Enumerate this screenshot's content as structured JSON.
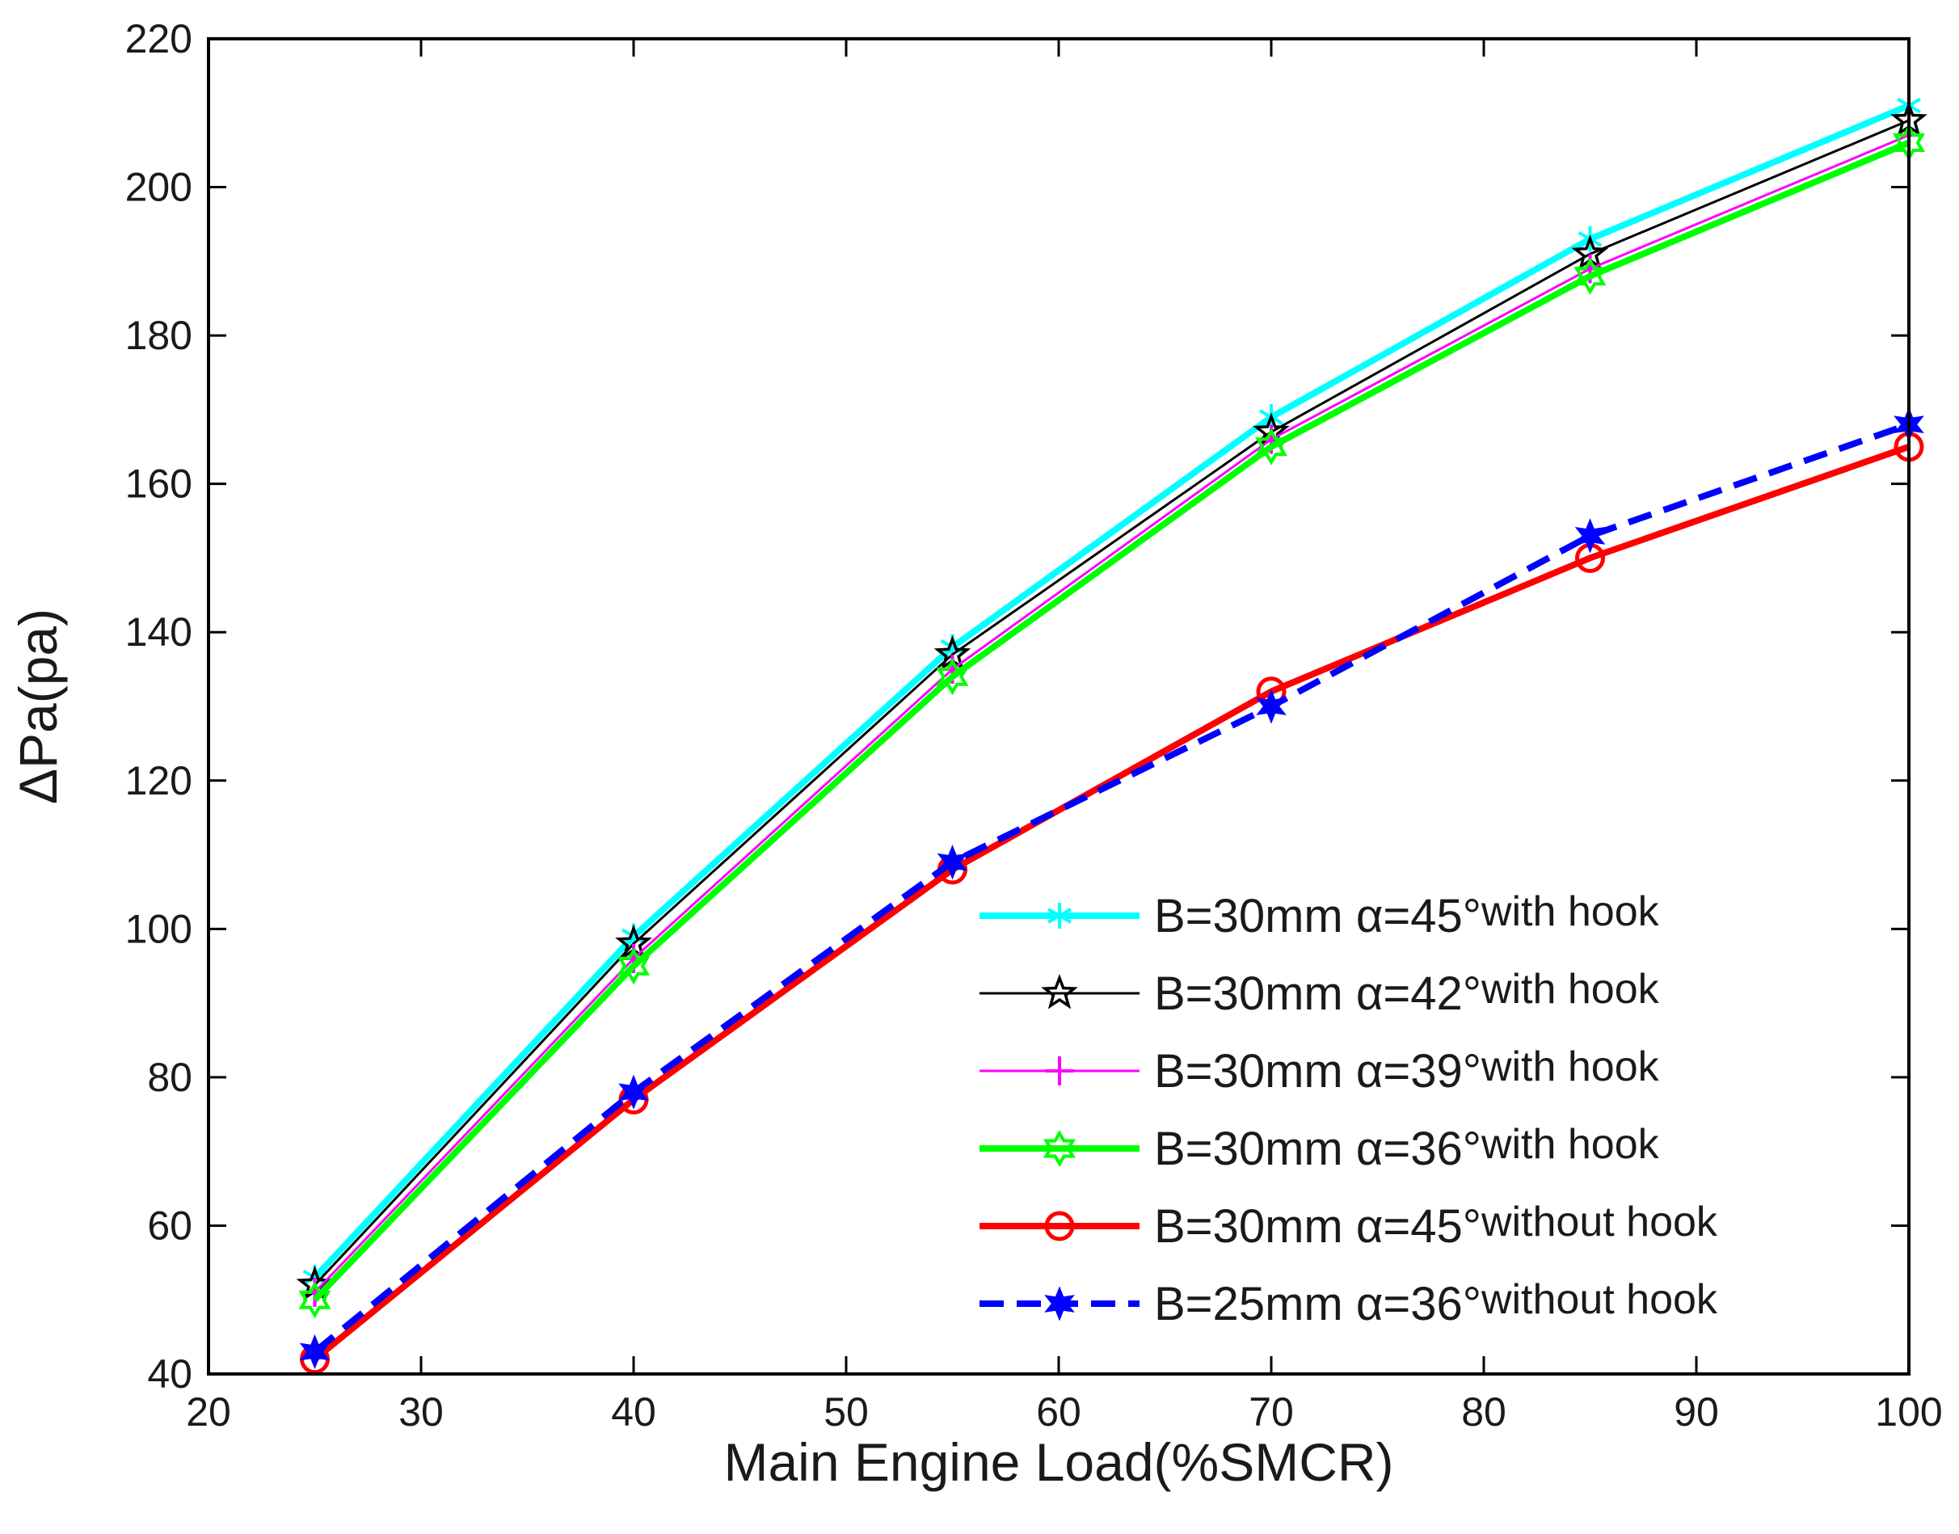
{
  "chart_data": {
    "type": "line",
    "title": "",
    "xlabel": "Main Engine Load(%SMCR)",
    "ylabel": "ΔPa(pa)",
    "xlim": [
      20,
      100
    ],
    "ylim": [
      40,
      220
    ],
    "xticks": [
      20,
      30,
      40,
      50,
      60,
      70,
      80,
      90,
      100
    ],
    "yticks": [
      40,
      60,
      80,
      100,
      120,
      140,
      160,
      180,
      200,
      220
    ],
    "grid": false,
    "legend_position": "bottom-right",
    "x": [
      25,
      40,
      55,
      70,
      85,
      100
    ],
    "series": [
      {
        "name": "B=30mm α=45°with hook",
        "label_main": "B=30mm α=45°",
        "label_suffix": "with hook",
        "values": [
          53,
          99,
          138,
          169,
          193,
          211
        ],
        "color": "#00ffff",
        "marker": "asterisk",
        "dash": "solid",
        "width": "thick"
      },
      {
        "name": "B=30mm α=42°with hook",
        "label_main": "B=30mm α=42°",
        "label_suffix": "with hook",
        "values": [
          52,
          98,
          137,
          167,
          191,
          209
        ],
        "color": "#000000",
        "marker": "star",
        "dash": "solid",
        "width": "thin"
      },
      {
        "name": "B=30mm α=39°with hook",
        "label_main": "B=30mm α=39°",
        "label_suffix": "with hook",
        "values": [
          51,
          96,
          135,
          166,
          189,
          207
        ],
        "color": "#ff00ff",
        "marker": "plus",
        "dash": "solid",
        "width": "thin"
      },
      {
        "name": "B=30mm α=36°with hook",
        "label_main": "B=30mm α=36°",
        "label_suffix": "with hook",
        "values": [
          50,
          95,
          134,
          165,
          188,
          206
        ],
        "color": "#00ff00",
        "marker": "hexagram",
        "dash": "solid",
        "width": "thick"
      },
      {
        "name": "B=30mm α=45°without hook",
        "label_main": "B=30mm α=45°",
        "label_suffix": "without hook",
        "values": [
          42,
          77,
          108,
          132,
          150,
          165
        ],
        "color": "#ff0000",
        "marker": "circle",
        "dash": "solid",
        "width": "thick"
      },
      {
        "name": "B=25mm α=36°without hook",
        "label_main": "B=25mm α=36°",
        "label_suffix": "without hook",
        "values": [
          43,
          78,
          109,
          130,
          153,
          168
        ],
        "color": "#0000ff",
        "marker": "star6",
        "dash": "dashed",
        "width": "thick"
      }
    ]
  }
}
